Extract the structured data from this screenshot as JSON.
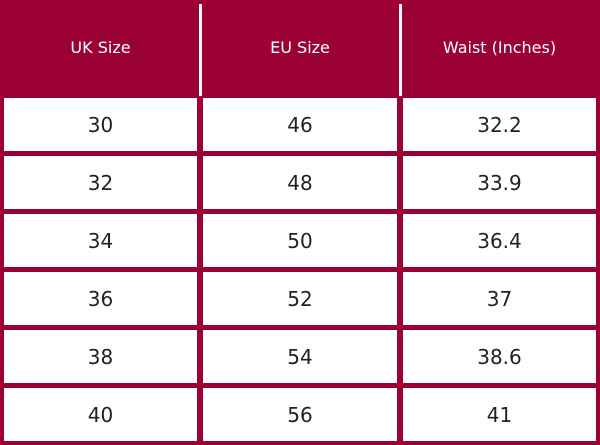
{
  "table": {
    "header": [
      "UK Size",
      "EU Size",
      "Waist (Inches)"
    ],
    "rows": [
      [
        30,
        46,
        32.2
      ],
      [
        32,
        48,
        33.9
      ],
      [
        34,
        50,
        36.4
      ],
      [
        36,
        52,
        37
      ],
      [
        38,
        54,
        38.6
      ],
      [
        40,
        56,
        41
      ]
    ]
  }
}
